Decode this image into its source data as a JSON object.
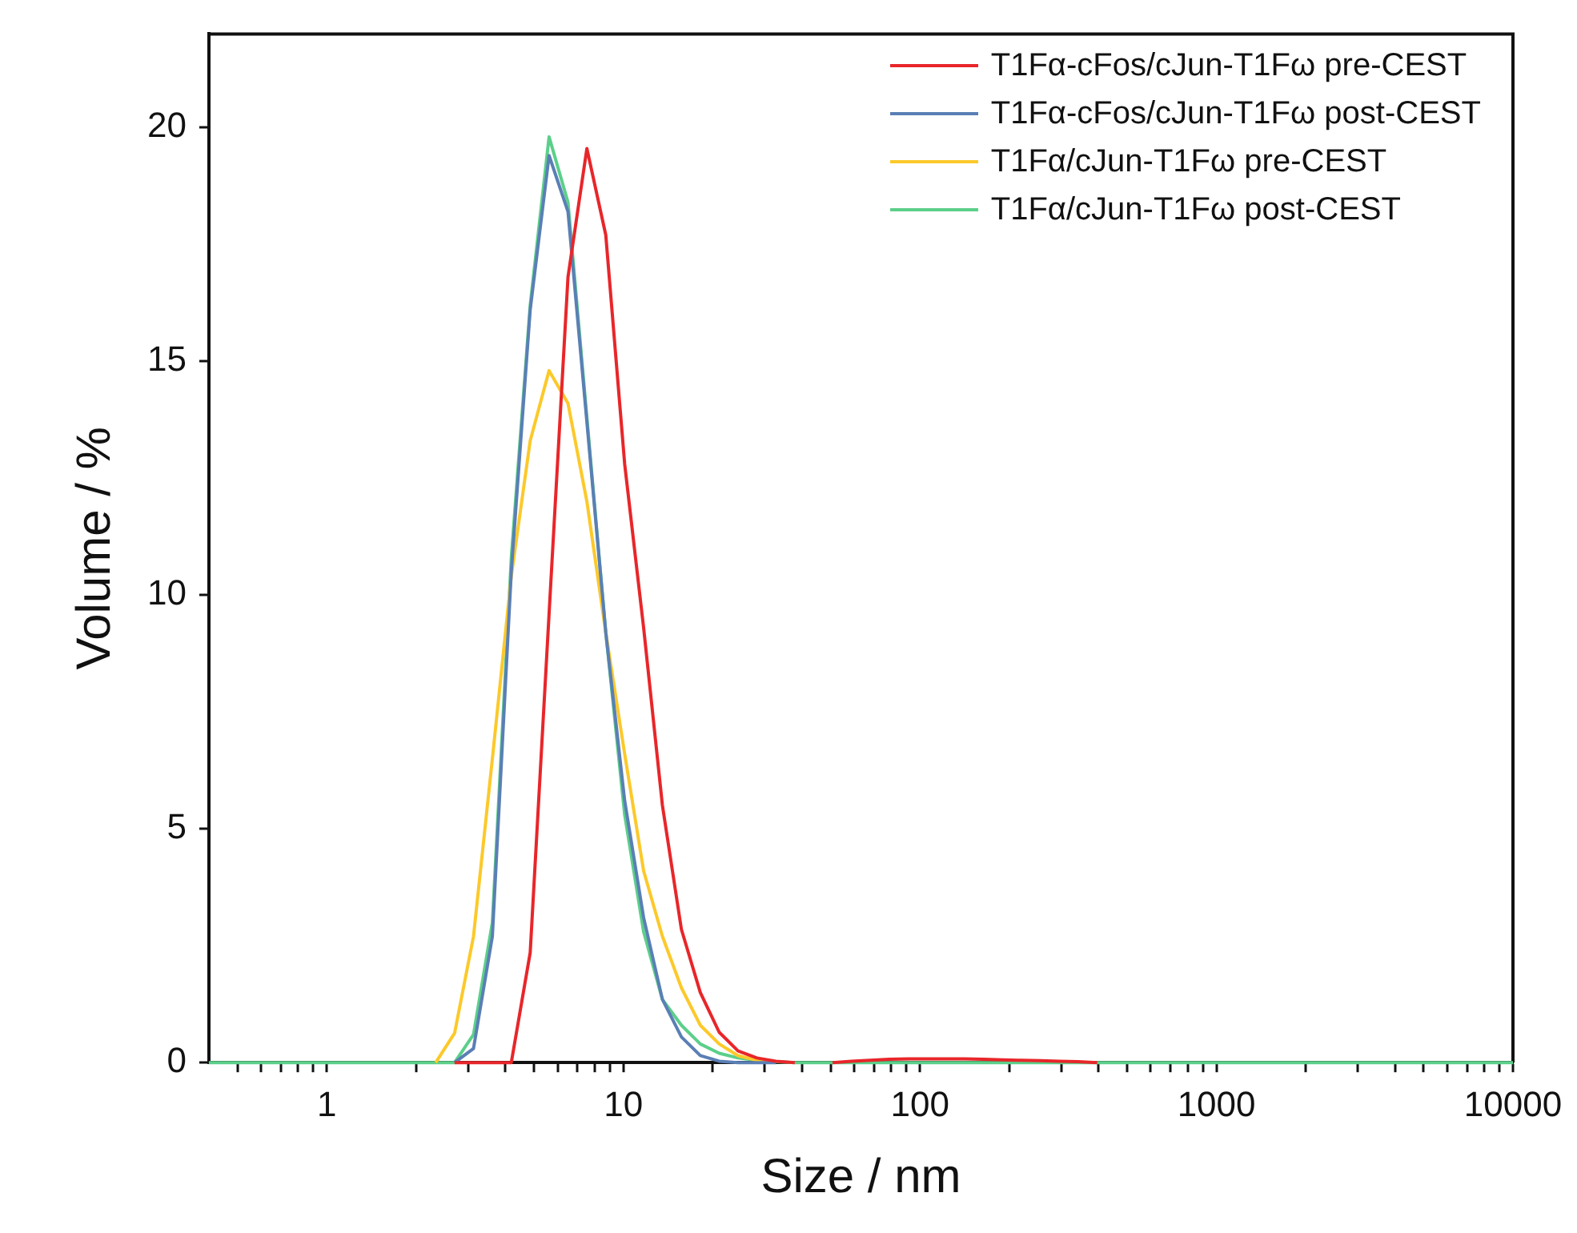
{
  "chart_data": {
    "type": "line",
    "xlabel": "Size / nm",
    "ylabel": "Volume / %",
    "log": "x",
    "grid": false,
    "legend": "top right",
    "marker": "none",
    "line_style": "solid",
    "xlim": [
      0.4,
      10000
    ],
    "ylim": [
      0,
      22
    ],
    "xticks": [
      {
        "value": 0.5,
        "label": null
      },
      {
        "value": 0.6,
        "label": null
      },
      {
        "value": 0.7,
        "label": null
      },
      {
        "value": 0.8,
        "label": null
      },
      {
        "value": 0.9,
        "label": null
      },
      1,
      {
        "value": 2,
        "label": null
      },
      {
        "value": 3,
        "label": null
      },
      {
        "value": 4,
        "label": null
      },
      {
        "value": 5,
        "label": null
      },
      {
        "value": 6,
        "label": null
      },
      {
        "value": 7,
        "label": null
      },
      {
        "value": 8,
        "label": null
      },
      {
        "value": 9,
        "label": null
      },
      10,
      {
        "value": 20,
        "label": null
      },
      {
        "value": 30,
        "label": null
      },
      {
        "value": 40,
        "label": null
      },
      {
        "value": 50,
        "label": null
      },
      {
        "value": 60,
        "label": null
      },
      {
        "value": 70,
        "label": null
      },
      {
        "value": 80,
        "label": null
      },
      {
        "value": 90,
        "label": null
      },
      100,
      {
        "value": 200,
        "label": null
      },
      {
        "value": 300,
        "label": null
      },
      {
        "value": 400,
        "label": null
      },
      {
        "value": 500,
        "label": null
      },
      {
        "value": 600,
        "label": null
      },
      {
        "value": 700,
        "label": null
      },
      {
        "value": 800,
        "label": null
      },
      {
        "value": 900,
        "label": null
      },
      1000,
      {
        "value": 2000,
        "label": null
      },
      {
        "value": 3000,
        "label": null
      },
      {
        "value": 4000,
        "label": null
      },
      {
        "value": 5000,
        "label": null
      },
      {
        "value": 6000,
        "label": null
      },
      {
        "value": 7000,
        "label": null
      },
      {
        "value": 8000,
        "label": null
      },
      {
        "value": 9000,
        "label": null
      },
      10000
    ],
    "yticks": [
      0,
      5,
      10,
      15,
      20
    ],
    "x": [
      0.4,
      0.4632,
      0.5365,
      0.6213,
      0.7195,
      0.8332,
      0.9649,
      1.117,
      1.294,
      1.499,
      1.736,
      2.01,
      2.328,
      2.696,
      3.122,
      3.615,
      4.187,
      4.849,
      5.615,
      6.503,
      7.531,
      8.721,
      10.1,
      11.7,
      13.54,
      15.69,
      18.17,
      21.04,
      24.36,
      28.21,
      32.67,
      37.84,
      43.82,
      50.75,
      58.77,
      68.06,
      78.82,
      91.28,
      105.7,
      122.4,
      141.8,
      164.2,
      190.1,
      220.2,
      255,
      295.3,
      342,
      396.1,
      458.7,
      531.2,
      615.1,
      712.4,
      825,
      955.4,
      1106,
      1281,
      1484,
      1718,
      1990,
      2305,
      2669,
      3091,
      3580,
      4145,
      4801,
      5560,
      6439,
      7456,
      8635,
      10000
    ],
    "series": [
      {
        "name": "T1Fα-cFos/cJun-T1Fω pre-CEST",
        "color": "#e8262a",
        "values": [
          null,
          null,
          null,
          null,
          null,
          null,
          null,
          null,
          null,
          null,
          null,
          null,
          null,
          0,
          0,
          0,
          0,
          2.35,
          9.6,
          16.8,
          19.55,
          17.7,
          12.8,
          9.3,
          5.5,
          2.85,
          1.5,
          0.65,
          0.25,
          0.1,
          0.03,
          0,
          null,
          0,
          0.03,
          0.05,
          0.07,
          0.08,
          0.08,
          0.08,
          0.08,
          0.07,
          0.06,
          0.05,
          0.04,
          0.03,
          0.02,
          0,
          null,
          null,
          null,
          null,
          null,
          null,
          null,
          null,
          null,
          null,
          null,
          null,
          null,
          null,
          null,
          null,
          null,
          null,
          null,
          null,
          null,
          null
        ]
      },
      {
        "name": "T1Fα-cFos/cJun-T1Fω post-CEST",
        "color": "#5a7fb5",
        "values": [
          null,
          null,
          null,
          null,
          null,
          null,
          null,
          null,
          null,
          null,
          null,
          null,
          null,
          0,
          0.3,
          2.7,
          10.5,
          16.1,
          19.4,
          18.2,
          13.7,
          9.2,
          5.6,
          3.1,
          1.35,
          0.55,
          0.15,
          0.03,
          0,
          0,
          0,
          null,
          null,
          null,
          null,
          null,
          null,
          null,
          null,
          null,
          null,
          null,
          null,
          null,
          null,
          null,
          null,
          null,
          null,
          null,
          null,
          null,
          null,
          null,
          null,
          null,
          null,
          null,
          null,
          null,
          null,
          null,
          null,
          null,
          null,
          null,
          null,
          null,
          null,
          null
        ]
      },
      {
        "name": "T1Fα/cJun-T1Fω pre-CEST",
        "color": "#fcc92a",
        "values": [
          null,
          null,
          null,
          null,
          null,
          null,
          null,
          null,
          null,
          null,
          null,
          null,
          0,
          0.63,
          2.7,
          6.5,
          10.4,
          13.3,
          14.8,
          14.1,
          12,
          9.2,
          6.6,
          4.1,
          2.7,
          1.6,
          0.8,
          0.4,
          0.15,
          0.05,
          0,
          null,
          null,
          null,
          null,
          null,
          null,
          null,
          null,
          null,
          null,
          null,
          null,
          null,
          null,
          null,
          null,
          null,
          null,
          null,
          null,
          null,
          null,
          null,
          null,
          null,
          null,
          null,
          null,
          null,
          null,
          null,
          null,
          null,
          null,
          null,
          null,
          null,
          null,
          null
        ]
      },
      {
        "name": "T1Fα/cJun-T1Fω post-CEST",
        "color": "#5ccf8a",
        "values": [
          0,
          0,
          0,
          0,
          0,
          0,
          0,
          0,
          0,
          0,
          0,
          0,
          0,
          0,
          0.6,
          3,
          10.8,
          16.2,
          19.8,
          18.4,
          13.8,
          9.2,
          5.3,
          2.8,
          1.35,
          0.8,
          0.4,
          0.2,
          0.1,
          0.05,
          0.02,
          0,
          0,
          0,
          0,
          0,
          0,
          0,
          0,
          0,
          0,
          0,
          0,
          0,
          0,
          0,
          0,
          0,
          0,
          0,
          0,
          0,
          0,
          0,
          0,
          0,
          0,
          0,
          0,
          0,
          0,
          0,
          0,
          0,
          0,
          0,
          0,
          0,
          0,
          0
        ]
      }
    ]
  }
}
